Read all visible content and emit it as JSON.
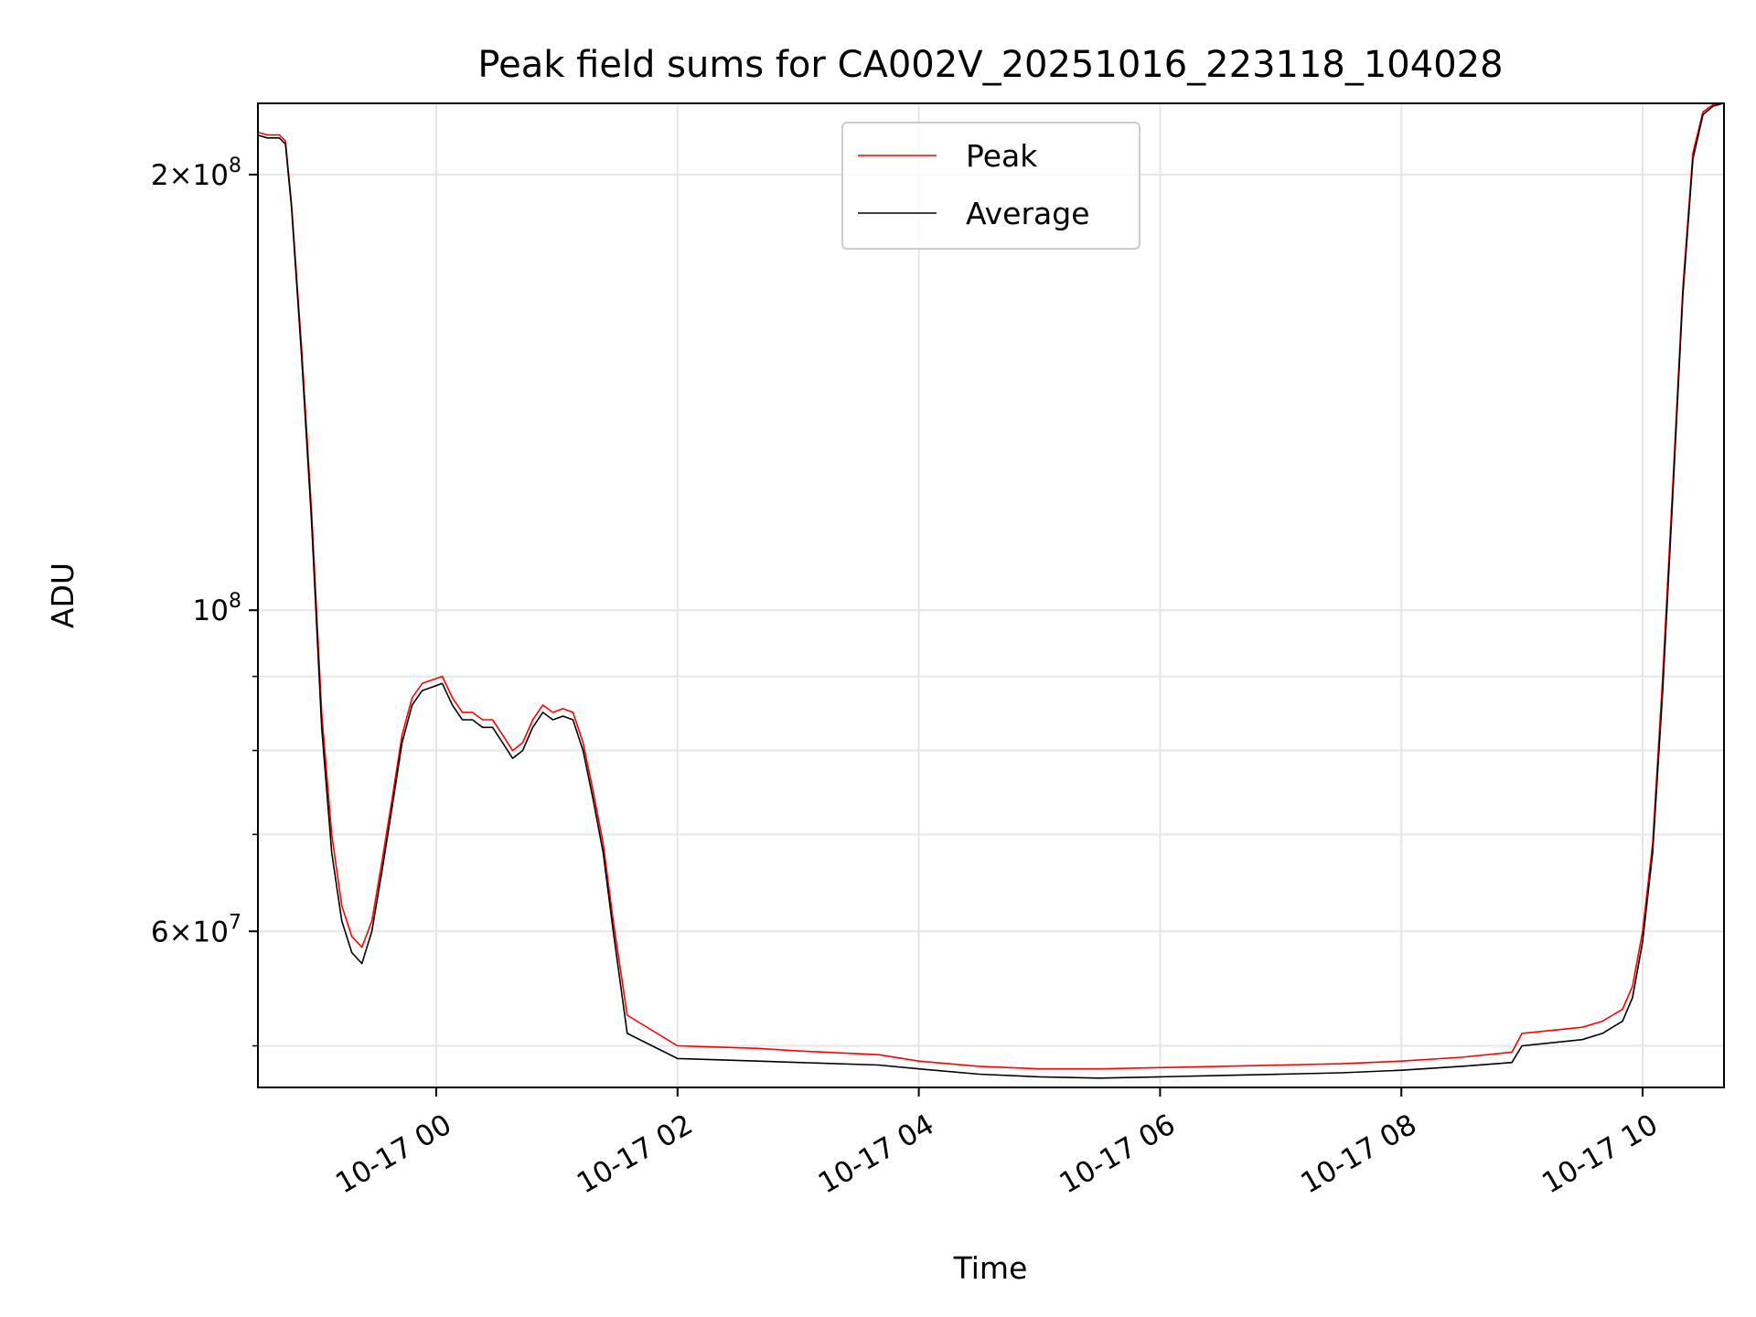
{
  "chart_data": {
    "type": "line",
    "title": "Peak field sums for CA002V_20251016_223118_104028",
    "xlabel": "Time",
    "ylabel": "ADU",
    "yscale": "log",
    "grid": true,
    "legend_position": "upper center",
    "xlim": [
      "2025-10-16 22:31:18",
      "2025-10-17 10:40:28"
    ],
    "ylim": [
      46800000,
      224000000
    ],
    "x_tick_labels": [
      "10-17 00",
      "10-17 02",
      "10-17 04",
      "10-17 06",
      "10-17 08",
      "10-17 10"
    ],
    "x_ticks": [
      "2025-10-17 00:00",
      "2025-10-17 02:00",
      "2025-10-17 04:00",
      "2025-10-17 06:00",
      "2025-10-17 08:00",
      "2025-10-17 10:00"
    ],
    "y_major_ticks": [
      {
        "value": 200000000,
        "mantissa": "2",
        "exponent": "8"
      },
      {
        "value": 100000000,
        "mantissa": "",
        "exponent": "8"
      },
      {
        "value": 60000000,
        "mantissa": "6",
        "exponent": "7"
      }
    ],
    "y_minor_ticks": [
      50000000,
      70000000,
      80000000,
      90000000
    ],
    "series": [
      {
        "name": "Average",
        "color": "#000000",
        "x": [
          "2025-10-16 22:31",
          "2025-10-16 22:36",
          "2025-10-16 22:42",
          "2025-10-16 22:45",
          "2025-10-16 22:48",
          "2025-10-16 22:53",
          "2025-10-16 22:58",
          "2025-10-16 23:03",
          "2025-10-16 23:08",
          "2025-10-16 23:13",
          "2025-10-16 23:18",
          "2025-10-16 23:23",
          "2025-10-16 23:28",
          "2025-10-16 23:33",
          "2025-10-16 23:38",
          "2025-10-16 23:43",
          "2025-10-16 23:48",
          "2025-10-16 23:53",
          "2025-10-16 23:58",
          "2025-10-17 00:03",
          "2025-10-17 00:08",
          "2025-10-17 00:13",
          "2025-10-17 00:18",
          "2025-10-17 00:23",
          "2025-10-17 00:28",
          "2025-10-17 00:33",
          "2025-10-17 00:38",
          "2025-10-17 00:43",
          "2025-10-17 00:48",
          "2025-10-17 00:53",
          "2025-10-17 00:58",
          "2025-10-17 01:03",
          "2025-10-17 01:08",
          "2025-10-17 01:13",
          "2025-10-17 01:18",
          "2025-10-17 01:23",
          "2025-10-17 01:28",
          "2025-10-17 01:35",
          "2025-10-17 02:00",
          "2025-10-17 02:40",
          "2025-10-17 03:00",
          "2025-10-17 03:40",
          "2025-10-17 04:00",
          "2025-10-17 04:30",
          "2025-10-17 05:00",
          "2025-10-17 05:30",
          "2025-10-17 06:00",
          "2025-10-17 06:30",
          "2025-10-17 07:00",
          "2025-10-17 07:30",
          "2025-10-17 08:00",
          "2025-10-17 08:30",
          "2025-10-17 08:55",
          "2025-10-17 09:00",
          "2025-10-17 09:30",
          "2025-10-17 09:40",
          "2025-10-17 09:45",
          "2025-10-17 09:50",
          "2025-10-17 09:55",
          "2025-10-17 10:00",
          "2025-10-17 10:05",
          "2025-10-17 10:10",
          "2025-10-17 10:15",
          "2025-10-17 10:20",
          "2025-10-17 10:25",
          "2025-10-17 10:30",
          "2025-10-17 10:35",
          "2025-10-17 10:40"
        ],
        "values": [
          213000000,
          212000000,
          212000000,
          210000000,
          190000000,
          150000000,
          115000000,
          83000000,
          68000000,
          61000000,
          58000000,
          57000000,
          60000000,
          66000000,
          73000000,
          81000000,
          86000000,
          88000000,
          88500000,
          89000000,
          86000000,
          84000000,
          84000000,
          83000000,
          83000000,
          81000000,
          79000000,
          80000000,
          83000000,
          85000000,
          84000000,
          84500000,
          84000000,
          80000000,
          74000000,
          68000000,
          60000000,
          51000000,
          49000000,
          48800000,
          48700000,
          48500000,
          48200000,
          47800000,
          47600000,
          47500000,
          47600000,
          47700000,
          47800000,
          47900000,
          48100000,
          48400000,
          48700000,
          50000000,
          50500000,
          51000000,
          51500000,
          52000000,
          54000000,
          59000000,
          68000000,
          88000000,
          120000000,
          165000000,
          205000000,
          220000000,
          223000000,
          224000000
        ]
      },
      {
        "name": "Peak",
        "color": "#ff0000",
        "x": [
          "2025-10-16 22:31",
          "2025-10-16 22:36",
          "2025-10-16 22:42",
          "2025-10-16 22:45",
          "2025-10-16 22:48",
          "2025-10-16 22:53",
          "2025-10-16 22:58",
          "2025-10-16 23:03",
          "2025-10-16 23:08",
          "2025-10-16 23:13",
          "2025-10-16 23:18",
          "2025-10-16 23:23",
          "2025-10-16 23:28",
          "2025-10-16 23:33",
          "2025-10-16 23:38",
          "2025-10-16 23:43",
          "2025-10-16 23:48",
          "2025-10-16 23:53",
          "2025-10-16 23:58",
          "2025-10-17 00:03",
          "2025-10-17 00:08",
          "2025-10-17 00:13",
          "2025-10-17 00:18",
          "2025-10-17 00:23",
          "2025-10-17 00:28",
          "2025-10-17 00:33",
          "2025-10-17 00:38",
          "2025-10-17 00:43",
          "2025-10-17 00:48",
          "2025-10-17 00:53",
          "2025-10-17 00:58",
          "2025-10-17 01:03",
          "2025-10-17 01:08",
          "2025-10-17 01:13",
          "2025-10-17 01:18",
          "2025-10-17 01:23",
          "2025-10-17 01:28",
          "2025-10-17 01:35",
          "2025-10-17 02:00",
          "2025-10-17 02:40",
          "2025-10-17 03:00",
          "2025-10-17 03:40",
          "2025-10-17 04:00",
          "2025-10-17 04:30",
          "2025-10-17 05:00",
          "2025-10-17 05:30",
          "2025-10-17 06:00",
          "2025-10-17 06:30",
          "2025-10-17 07:00",
          "2025-10-17 07:30",
          "2025-10-17 08:00",
          "2025-10-17 08:30",
          "2025-10-17 08:55",
          "2025-10-17 09:00",
          "2025-10-17 09:30",
          "2025-10-17 09:40",
          "2025-10-17 09:45",
          "2025-10-17 09:50",
          "2025-10-17 09:55",
          "2025-10-17 10:00",
          "2025-10-17 10:05",
          "2025-10-17 10:10",
          "2025-10-17 10:15",
          "2025-10-17 10:20",
          "2025-10-17 10:25",
          "2025-10-17 10:30",
          "2025-10-17 10:35",
          "2025-10-17 10:40"
        ],
        "values": [
          214000000,
          213000000,
          213000000,
          211000000,
          191000000,
          152000000,
          117000000,
          85000000,
          70000000,
          62500000,
          59500000,
          58500000,
          61000000,
          67000000,
          74000000,
          82000000,
          87000000,
          89000000,
          89500000,
          90000000,
          87000000,
          85000000,
          85000000,
          84000000,
          84000000,
          82000000,
          80000000,
          81000000,
          84000000,
          86000000,
          85000000,
          85500000,
          85000000,
          81000000,
          75000000,
          69000000,
          61000000,
          52500000,
          50000000,
          49800000,
          49600000,
          49300000,
          48800000,
          48400000,
          48200000,
          48200000,
          48300000,
          48400000,
          48500000,
          48600000,
          48800000,
          49100000,
          49500000,
          51000000,
          51500000,
          52000000,
          52500000,
          53000000,
          55000000,
          60000000,
          69000000,
          90000000,
          122000000,
          167000000,
          207000000,
          221000000,
          223500000,
          224000000
        ]
      }
    ]
  }
}
